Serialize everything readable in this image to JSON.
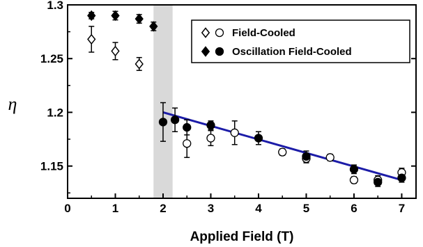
{
  "chart_data": {
    "type": "scatter",
    "xlabel": "Applied Field (T)",
    "ylabel": "η",
    "xlim": [
      0,
      7.3
    ],
    "ylim": [
      1.12,
      1.3
    ],
    "xticks": [
      "0",
      "1",
      "2",
      "3",
      "4",
      "5",
      "6",
      "7"
    ],
    "yticks": [
      "1.15",
      "1.2",
      "1.25",
      "1.3"
    ],
    "grid": false,
    "legend_position": "top-right",
    "shaded_band": {
      "x": [
        1.8,
        2.2
      ],
      "color": "#d9d9d9"
    },
    "fit_line": {
      "x": [
        2.0,
        7.0
      ],
      "y": [
        1.2,
        1.137
      ],
      "color": "#1c1ca8"
    },
    "legend": [
      {
        "label": "Field-Cooled",
        "markers": [
          "open-diamond",
          "open-circle"
        ]
      },
      {
        "label": "Oscillation Field-Cooled",
        "markers": [
          "filled-diamond",
          "filled-circle"
        ]
      }
    ],
    "series": [
      {
        "name": "Field-Cooled",
        "marker": "open-diamond",
        "x": [
          0.5,
          1.0,
          1.5
        ],
        "y": [
          1.268,
          1.257,
          1.245
        ],
        "err": [
          0.012,
          0.008,
          0.006
        ]
      },
      {
        "name": "Field-Cooled",
        "marker": "open-circle",
        "x": [
          2.5,
          3.0,
          3.5,
          4.5,
          5.0,
          5.5,
          6.0,
          6.5,
          7.0
        ],
        "y": [
          1.171,
          1.176,
          1.181,
          1.163,
          1.157,
          1.158,
          1.137,
          1.137,
          1.144
        ],
        "err": [
          0.013,
          0.007,
          0.011,
          0.003,
          0.004,
          0.003,
          0.003,
          0.004,
          0.004
        ]
      },
      {
        "name": "Oscillation Field-Cooled",
        "marker": "filled-diamond",
        "x": [
          0.5,
          1.0,
          1.5,
          1.8
        ],
        "y": [
          1.29,
          1.29,
          1.287,
          1.28
        ],
        "err": [
          0.003,
          0.004,
          0.004,
          0.004
        ]
      },
      {
        "name": "Oscillation Field-Cooled",
        "marker": "filled-circle",
        "x": [
          2.0,
          2.25,
          2.5,
          3.0,
          4.0,
          5.0,
          6.0,
          6.5,
          7.0
        ],
        "y": [
          1.191,
          1.193,
          1.186,
          1.188,
          1.176,
          1.159,
          1.147,
          1.135,
          1.139
        ],
        "err": [
          0.018,
          0.011,
          0.007,
          0.004,
          0.006,
          0.005,
          0.004,
          0.004,
          0.004
        ]
      }
    ]
  }
}
